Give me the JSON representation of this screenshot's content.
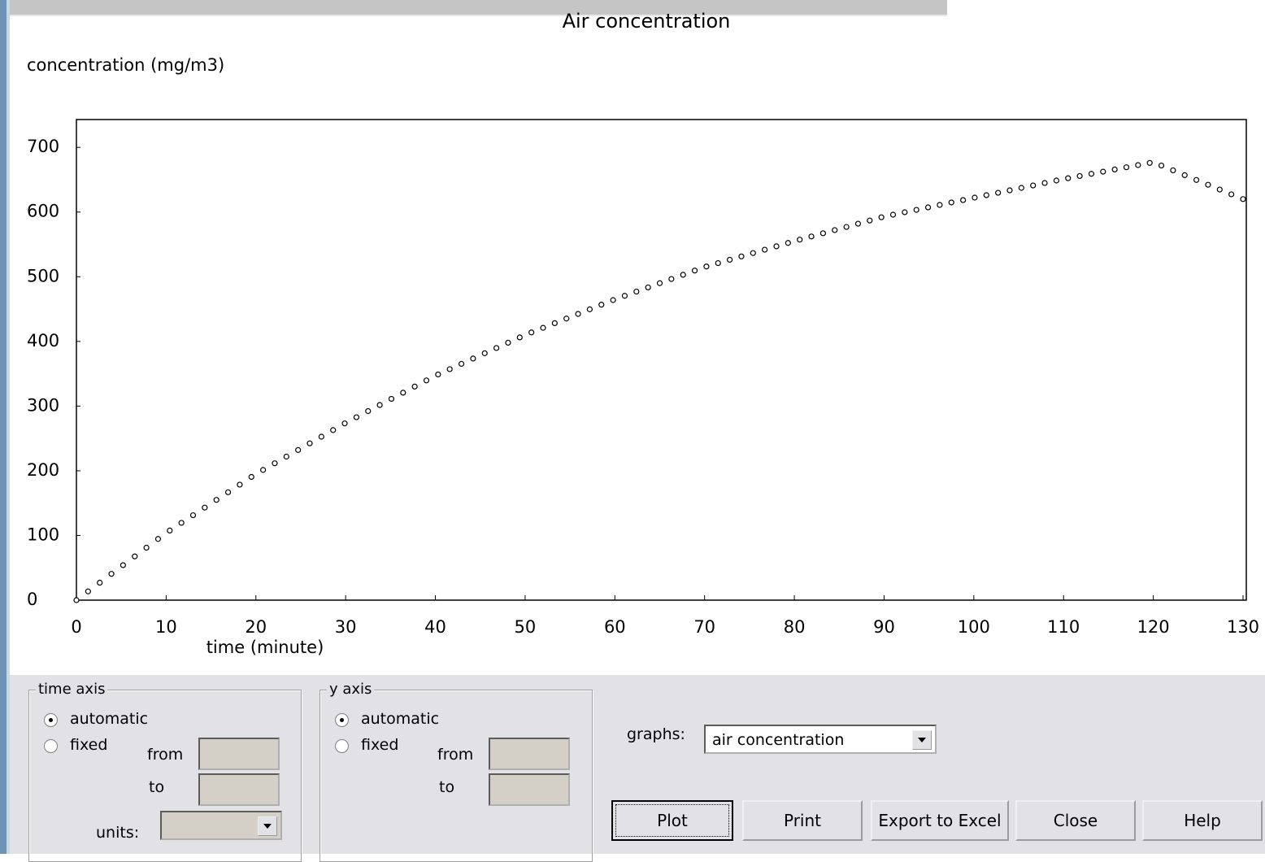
{
  "chart_data": {
    "type": "scatter",
    "title": "Air concentration",
    "y_label": "concentration (mg/m3)",
    "x_label": "time (minute)",
    "x": [
      0,
      1.3,
      2.6,
      3.9,
      5.2,
      6.5,
      7.8,
      9.1,
      10.4,
      11.7,
      13,
      14.3,
      15.6,
      16.9,
      18.2,
      19.5,
      20.8,
      22.1,
      23.4,
      24.7,
      26,
      27.3,
      28.6,
      29.9,
      31.2,
      32.5,
      33.8,
      35.1,
      36.4,
      37.7,
      39,
      40.3,
      41.6,
      42.9,
      44.2,
      45.5,
      46.8,
      48.1,
      49.4,
      50.7,
      52,
      53.3,
      54.6,
      55.9,
      57.2,
      58.5,
      59.8,
      61.1,
      62.4,
      63.7,
      65,
      66.3,
      67.6,
      68.9,
      70.2,
      71.5,
      72.8,
      74.1,
      75.4,
      76.7,
      78,
      79.3,
      80.6,
      81.9,
      83.2,
      84.5,
      85.8,
      87.1,
      88.4,
      89.7,
      91,
      92.3,
      93.6,
      94.9,
      96.2,
      97.5,
      98.8,
      100.1,
      101.4,
      102.7,
      104,
      105.3,
      106.6,
      107.9,
      109.2,
      110.5,
      111.8,
      113.1,
      114.4,
      115.7,
      117,
      118.3,
      119.6,
      120.9,
      122.2,
      123.5,
      124.8,
      126.1,
      127.4,
      128.7,
      130
    ],
    "values": [
      0,
      13.5,
      27.0,
      40.6,
      54.1,
      67.6,
      81.1,
      94.6,
      107.6,
      119.5,
      131.3,
      143.1,
      155.0,
      166.8,
      178.6,
      190.5,
      201.3,
      211.6,
      221.9,
      232.1,
      242.4,
      252.7,
      262.9,
      273.2,
      282.8,
      292.3,
      301.7,
      311.2,
      320.7,
      330.2,
      339.7,
      348.9,
      357.1,
      365.3,
      373.5,
      381.7,
      389.8,
      398.0,
      406.2,
      413.9,
      421.0,
      428.2,
      435.3,
      442.5,
      449.6,
      456.8,
      463.9,
      470.5,
      477.0,
      483.5,
      490.0,
      496.5,
      503.0,
      509.5,
      515.8,
      521.0,
      526.2,
      531.4,
      536.6,
      541.8,
      547.0,
      552.2,
      557.3,
      562.2,
      567.2,
      572.1,
      577.0,
      582.0,
      586.9,
      591.9,
      595.9,
      599.7,
      603.4,
      607.2,
      611.0,
      614.8,
      618.5,
      622.3,
      626.1,
      629.8,
      633.6,
      637.4,
      641.1,
      644.9,
      648.7,
      652.3,
      655.7,
      659.1,
      662.4,
      665.8,
      669.2,
      672.6,
      676.0,
      671.9,
      664.5,
      657.0,
      649.6,
      642.2,
      634.8,
      627.4,
      620.0
    ],
    "xlim": [
      0,
      130
    ],
    "ylim": [
      0,
      743
    ],
    "xticks": [
      0,
      10,
      20,
      30,
      40,
      50,
      60,
      70,
      80,
      90,
      100,
      110,
      120,
      130
    ],
    "yticks": [
      0,
      100,
      200,
      300,
      400,
      500,
      600,
      700
    ],
    "marker": "open-circle",
    "color": "#000000"
  },
  "controls": {
    "time_axis": {
      "title": "time axis",
      "automatic": "automatic",
      "fixed": "fixed",
      "from": "from",
      "to": "to",
      "units": "units:"
    },
    "y_axis": {
      "title": "y axis",
      "automatic": "automatic",
      "fixed": "fixed",
      "from": "from",
      "to": "to"
    },
    "graphs_label": "graphs:",
    "graphs_value": "air concentration",
    "buttons": [
      "Plot",
      "Print",
      "Export to Excel",
      "Close",
      "Help"
    ]
  }
}
